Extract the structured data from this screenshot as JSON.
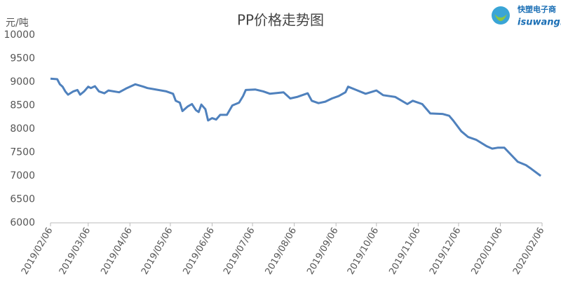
{
  "chart_data": {
    "type": "line",
    "title": "PP价格走势图",
    "y_label": "元/吨",
    "logo": {
      "name": "快塑电子商",
      "url": "isuwang.co"
    },
    "color": "#4f81bd",
    "x": [
      "2019/02/06",
      "2019/02/11",
      "2019/02/13",
      "2019/02/15",
      "2019/02/17",
      "2019/02/19",
      "2019/02/23",
      "2019/02/26",
      "2019/02/28",
      "2019/03/03",
      "2019/03/06",
      "2019/03/08",
      "2019/03/11",
      "2019/03/14",
      "2019/03/18",
      "2019/03/21",
      "2019/03/29",
      "2019/04/03",
      "2019/04/10",
      "2019/04/16",
      "2019/04/19",
      "2019/04/23",
      "2019/05/03",
      "2019/05/08",
      "2019/05/10",
      "2019/05/13",
      "2019/05/15",
      "2019/05/19",
      "2019/05/22",
      "2019/05/25",
      "2019/05/27",
      "2019/05/29",
      "2019/06/01",
      "2019/06/03",
      "2019/06/06",
      "2019/06/09",
      "2019/06/12",
      "2019/06/17",
      "2019/06/21",
      "2019/06/26",
      "2019/06/29",
      "2019/07/01",
      "2019/07/08",
      "2019/07/14",
      "2019/07/19",
      "2019/07/29",
      "2019/08/03",
      "2019/08/08",
      "2019/08/16",
      "2019/08/19",
      "2019/08/24",
      "2019/08/29",
      "2019/09/03",
      "2019/09/08",
      "2019/09/13",
      "2019/09/15",
      "2019/09/21",
      "2019/09/28",
      "2019/10/06",
      "2019/10/11",
      "2019/10/20",
      "2019/10/29",
      "2019/11/02",
      "2019/11/09",
      "2019/11/15",
      "2019/11/24",
      "2019/11/29",
      "2019/12/02",
      "2019/12/08",
      "2019/12/13",
      "2019/12/19",
      "2019/12/27",
      "2019/12/31",
      "2020/01/04",
      "2020/01/09",
      "2020/01/14",
      "2020/01/19",
      "2020/01/25",
      "2020/01/29",
      "2020/02/05"
    ],
    "values": [
      9070,
      9060,
      8950,
      8900,
      8800,
      8730,
      8800,
      8830,
      8730,
      8800,
      8900,
      8870,
      8910,
      8800,
      8760,
      8820,
      8780,
      8860,
      8950,
      8900,
      8870,
      8850,
      8800,
      8750,
      8600,
      8560,
      8380,
      8480,
      8530,
      8400,
      8360,
      8520,
      8420,
      8180,
      8230,
      8200,
      8300,
      8300,
      8500,
      8560,
      8700,
      8830,
      8840,
      8800,
      8750,
      8780,
      8650,
      8680,
      8760,
      8600,
      8550,
      8580,
      8650,
      8700,
      8780,
      8900,
      8830,
      8750,
      8820,
      8720,
      8680,
      8530,
      8600,
      8530,
      8330,
      8320,
      8280,
      8180,
      7950,
      7830,
      7770,
      7630,
      7580,
      7600,
      7600,
      7450,
      7300,
      7230,
      7150,
      7000
    ],
    "xlim": [
      "2019/02/06",
      "2020/02/06"
    ],
    "xticks": [
      "2019/02/06",
      "2019/03/06",
      "2019/04/06",
      "2019/05/06",
      "2019/06/06",
      "2019/07/06",
      "2019/08/06",
      "2019/09/06",
      "2019/10/06",
      "2019/11/06",
      "2019/12/06",
      "2020/01/06",
      "2020/02/06"
    ],
    "ylim": [
      6000,
      10000
    ],
    "yticks": [
      6000,
      6500,
      7000,
      7500,
      8000,
      8500,
      9000,
      9500,
      10000
    ],
    "grid": false
  }
}
